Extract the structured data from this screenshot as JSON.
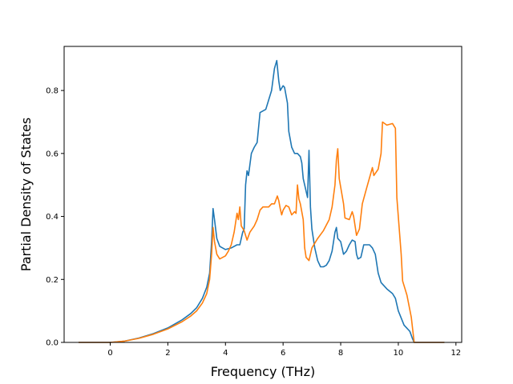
{
  "chart_data": {
    "type": "line",
    "title": "",
    "xlabel": "Frequency (THz)",
    "ylabel": "Partial Density of States",
    "xlim": [
      -1.6,
      12.2
    ],
    "ylim": [
      0.0,
      0.94
    ],
    "xticks": [
      0,
      2,
      4,
      6,
      8,
      10,
      12
    ],
    "xtick_labels": [
      "0",
      "2",
      "4",
      "6",
      "8",
      "10",
      "12"
    ],
    "yticks": [
      0.0,
      0.2,
      0.4,
      0.6,
      0.8
    ],
    "ytick_labels": [
      "0.0",
      "0.2",
      "0.4",
      "0.6",
      "0.8"
    ],
    "grid": false,
    "legend": "none",
    "series": [
      {
        "color": "#1f77b4",
        "points": [
          [
            -1.1,
            0.0
          ],
          [
            0.0,
            0.0
          ],
          [
            0.5,
            0.004
          ],
          [
            1.0,
            0.014
          ],
          [
            1.5,
            0.028
          ],
          [
            2.0,
            0.046
          ],
          [
            2.5,
            0.072
          ],
          [
            2.8,
            0.092
          ],
          [
            3.0,
            0.11
          ],
          [
            3.2,
            0.14
          ],
          [
            3.35,
            0.175
          ],
          [
            3.45,
            0.22
          ],
          [
            3.52,
            0.32
          ],
          [
            3.57,
            0.425
          ],
          [
            3.62,
            0.39
          ],
          [
            3.7,
            0.33
          ],
          [
            3.8,
            0.305
          ],
          [
            4.0,
            0.295
          ],
          [
            4.2,
            0.3
          ],
          [
            4.4,
            0.31
          ],
          [
            4.5,
            0.31
          ],
          [
            4.6,
            0.35
          ],
          [
            4.65,
            0.36
          ],
          [
            4.7,
            0.5
          ],
          [
            4.75,
            0.545
          ],
          [
            4.8,
            0.53
          ],
          [
            4.9,
            0.6
          ],
          [
            5.0,
            0.62
          ],
          [
            5.1,
            0.635
          ],
          [
            5.2,
            0.73
          ],
          [
            5.4,
            0.74
          ],
          [
            5.5,
            0.77
          ],
          [
            5.6,
            0.8
          ],
          [
            5.7,
            0.87
          ],
          [
            5.78,
            0.895
          ],
          [
            5.85,
            0.83
          ],
          [
            5.9,
            0.8
          ],
          [
            6.0,
            0.815
          ],
          [
            6.05,
            0.81
          ],
          [
            6.15,
            0.76
          ],
          [
            6.2,
            0.67
          ],
          [
            6.3,
            0.62
          ],
          [
            6.4,
            0.6
          ],
          [
            6.5,
            0.6
          ],
          [
            6.6,
            0.59
          ],
          [
            6.65,
            0.57
          ],
          [
            6.7,
            0.52
          ],
          [
            6.75,
            0.5
          ],
          [
            6.85,
            0.46
          ],
          [
            6.9,
            0.61
          ],
          [
            6.95,
            0.43
          ],
          [
            7.0,
            0.36
          ],
          [
            7.1,
            0.3
          ],
          [
            7.2,
            0.26
          ],
          [
            7.3,
            0.24
          ],
          [
            7.4,
            0.24
          ],
          [
            7.5,
            0.245
          ],
          [
            7.6,
            0.26
          ],
          [
            7.7,
            0.29
          ],
          [
            7.8,
            0.35
          ],
          [
            7.85,
            0.365
          ],
          [
            7.9,
            0.33
          ],
          [
            8.0,
            0.32
          ],
          [
            8.1,
            0.28
          ],
          [
            8.2,
            0.29
          ],
          [
            8.3,
            0.31
          ],
          [
            8.4,
            0.325
          ],
          [
            8.5,
            0.32
          ],
          [
            8.55,
            0.28
          ],
          [
            8.6,
            0.265
          ],
          [
            8.7,
            0.27
          ],
          [
            8.8,
            0.31
          ],
          [
            9.0,
            0.31
          ],
          [
            9.1,
            0.3
          ],
          [
            9.2,
            0.28
          ],
          [
            9.3,
            0.22
          ],
          [
            9.4,
            0.19
          ],
          [
            9.6,
            0.17
          ],
          [
            9.8,
            0.155
          ],
          [
            9.9,
            0.14
          ],
          [
            10.0,
            0.1
          ],
          [
            10.2,
            0.055
          ],
          [
            10.4,
            0.035
          ],
          [
            10.5,
            0.01
          ],
          [
            10.55,
            0.0
          ],
          [
            11.6,
            0.0
          ]
        ]
      },
      {
        "color": "#ff7f0e",
        "points": [
          [
            -1.1,
            0.0
          ],
          [
            0.0,
            0.0
          ],
          [
            0.5,
            0.004
          ],
          [
            1.0,
            0.013
          ],
          [
            1.5,
            0.026
          ],
          [
            2.0,
            0.043
          ],
          [
            2.5,
            0.066
          ],
          [
            2.8,
            0.084
          ],
          [
            3.0,
            0.1
          ],
          [
            3.2,
            0.125
          ],
          [
            3.35,
            0.155
          ],
          [
            3.45,
            0.2
          ],
          [
            3.52,
            0.28
          ],
          [
            3.57,
            0.365
          ],
          [
            3.62,
            0.32
          ],
          [
            3.7,
            0.28
          ],
          [
            3.8,
            0.265
          ],
          [
            4.0,
            0.275
          ],
          [
            4.1,
            0.29
          ],
          [
            4.2,
            0.31
          ],
          [
            4.3,
            0.35
          ],
          [
            4.4,
            0.41
          ],
          [
            4.45,
            0.39
          ],
          [
            4.5,
            0.43
          ],
          [
            4.55,
            0.37
          ],
          [
            4.65,
            0.355
          ],
          [
            4.75,
            0.325
          ],
          [
            4.85,
            0.35
          ],
          [
            5.0,
            0.37
          ],
          [
            5.1,
            0.39
          ],
          [
            5.2,
            0.42
          ],
          [
            5.3,
            0.43
          ],
          [
            5.5,
            0.43
          ],
          [
            5.6,
            0.44
          ],
          [
            5.7,
            0.44
          ],
          [
            5.8,
            0.465
          ],
          [
            5.85,
            0.45
          ],
          [
            5.9,
            0.425
          ],
          [
            5.95,
            0.405
          ],
          [
            6.0,
            0.42
          ],
          [
            6.1,
            0.435
          ],
          [
            6.2,
            0.43
          ],
          [
            6.3,
            0.405
          ],
          [
            6.4,
            0.415
          ],
          [
            6.45,
            0.41
          ],
          [
            6.5,
            0.5
          ],
          [
            6.55,
            0.455
          ],
          [
            6.6,
            0.44
          ],
          [
            6.7,
            0.39
          ],
          [
            6.75,
            0.3
          ],
          [
            6.8,
            0.27
          ],
          [
            6.9,
            0.26
          ],
          [
            7.0,
            0.3
          ],
          [
            7.2,
            0.33
          ],
          [
            7.4,
            0.355
          ],
          [
            7.6,
            0.39
          ],
          [
            7.7,
            0.43
          ],
          [
            7.8,
            0.5
          ],
          [
            7.85,
            0.58
          ],
          [
            7.9,
            0.615
          ],
          [
            7.95,
            0.52
          ],
          [
            8.1,
            0.44
          ],
          [
            8.15,
            0.395
          ],
          [
            8.3,
            0.39
          ],
          [
            8.4,
            0.415
          ],
          [
            8.45,
            0.4
          ],
          [
            8.55,
            0.34
          ],
          [
            8.65,
            0.36
          ],
          [
            8.75,
            0.44
          ],
          [
            8.9,
            0.49
          ],
          [
            9.1,
            0.555
          ],
          [
            9.15,
            0.53
          ],
          [
            9.3,
            0.55
          ],
          [
            9.4,
            0.6
          ],
          [
            9.45,
            0.7
          ],
          [
            9.6,
            0.69
          ],
          [
            9.8,
            0.695
          ],
          [
            9.9,
            0.68
          ],
          [
            9.95,
            0.46
          ],
          [
            10.1,
            0.28
          ],
          [
            10.15,
            0.195
          ],
          [
            10.3,
            0.15
          ],
          [
            10.45,
            0.08
          ],
          [
            10.5,
            0.04
          ],
          [
            10.55,
            0.0
          ],
          [
            11.6,
            0.0
          ]
        ]
      }
    ]
  }
}
